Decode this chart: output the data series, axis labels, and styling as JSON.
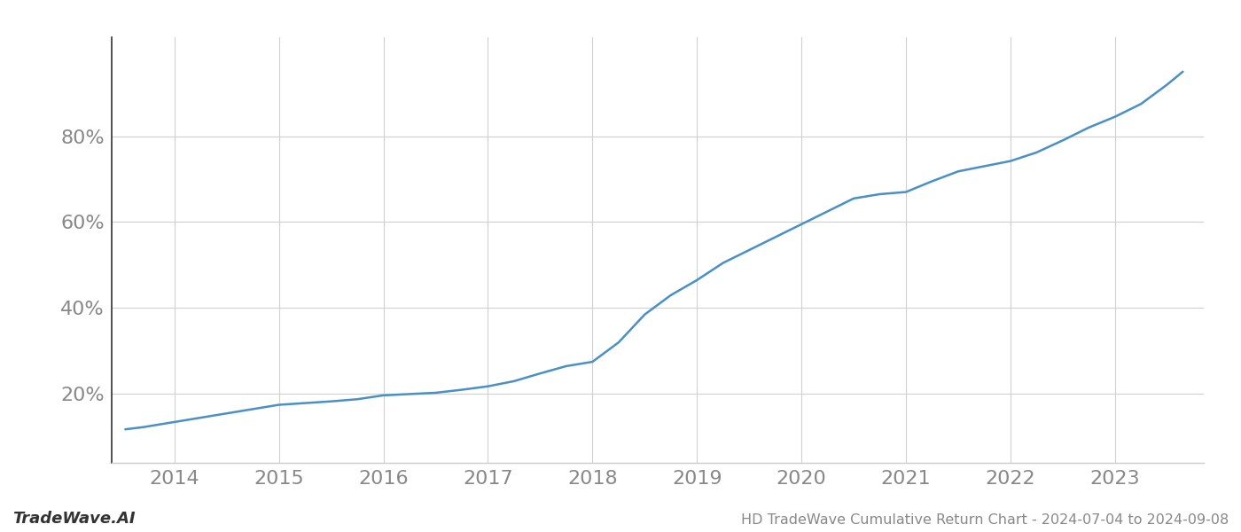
{
  "title": "HD TradeWave Cumulative Return Chart - 2024-07-04 to 2024-09-08",
  "watermark": "TradeWave.AI",
  "line_color": "#4a90c4",
  "background_color": "#ffffff",
  "grid_color": "#d0d0d0",
  "x_years": [
    2014,
    2015,
    2016,
    2017,
    2018,
    2019,
    2020,
    2021,
    2022,
    2023
  ],
  "x_data": [
    2013.53,
    2013.7,
    2014.0,
    2014.25,
    2014.5,
    2014.75,
    2015.0,
    2015.25,
    2015.5,
    2015.75,
    2016.0,
    2016.25,
    2016.5,
    2016.75,
    2017.0,
    2017.25,
    2017.5,
    2017.75,
    2018.0,
    2018.25,
    2018.5,
    2018.75,
    2019.0,
    2019.25,
    2019.5,
    2019.75,
    2020.0,
    2020.25,
    2020.5,
    2020.75,
    2021.0,
    2021.25,
    2021.5,
    2021.75,
    2022.0,
    2022.25,
    2022.5,
    2022.75,
    2023.0,
    2023.25,
    2023.5,
    2023.65
  ],
  "y_data": [
    0.118,
    0.123,
    0.135,
    0.145,
    0.155,
    0.165,
    0.175,
    0.179,
    0.183,
    0.188,
    0.197,
    0.2,
    0.203,
    0.21,
    0.218,
    0.23,
    0.248,
    0.265,
    0.275,
    0.32,
    0.385,
    0.43,
    0.465,
    0.505,
    0.535,
    0.565,
    0.595,
    0.625,
    0.655,
    0.665,
    0.67,
    0.695,
    0.718,
    0.73,
    0.742,
    0.762,
    0.79,
    0.82,
    0.845,
    0.875,
    0.92,
    0.95
  ],
  "yticks": [
    0.2,
    0.4,
    0.6,
    0.8
  ],
  "ytick_labels": [
    "20%",
    "40%",
    "60%",
    "80%"
  ],
  "ylim": [
    0.04,
    1.03
  ],
  "xlim": [
    2013.4,
    2023.85
  ],
  "title_fontsize": 11.5,
  "watermark_fontsize": 13,
  "tick_fontsize": 16,
  "tick_color": "#888888",
  "left_spine_color": "#333333",
  "bottom_spine_color": "#cccccc",
  "line_width": 1.8
}
